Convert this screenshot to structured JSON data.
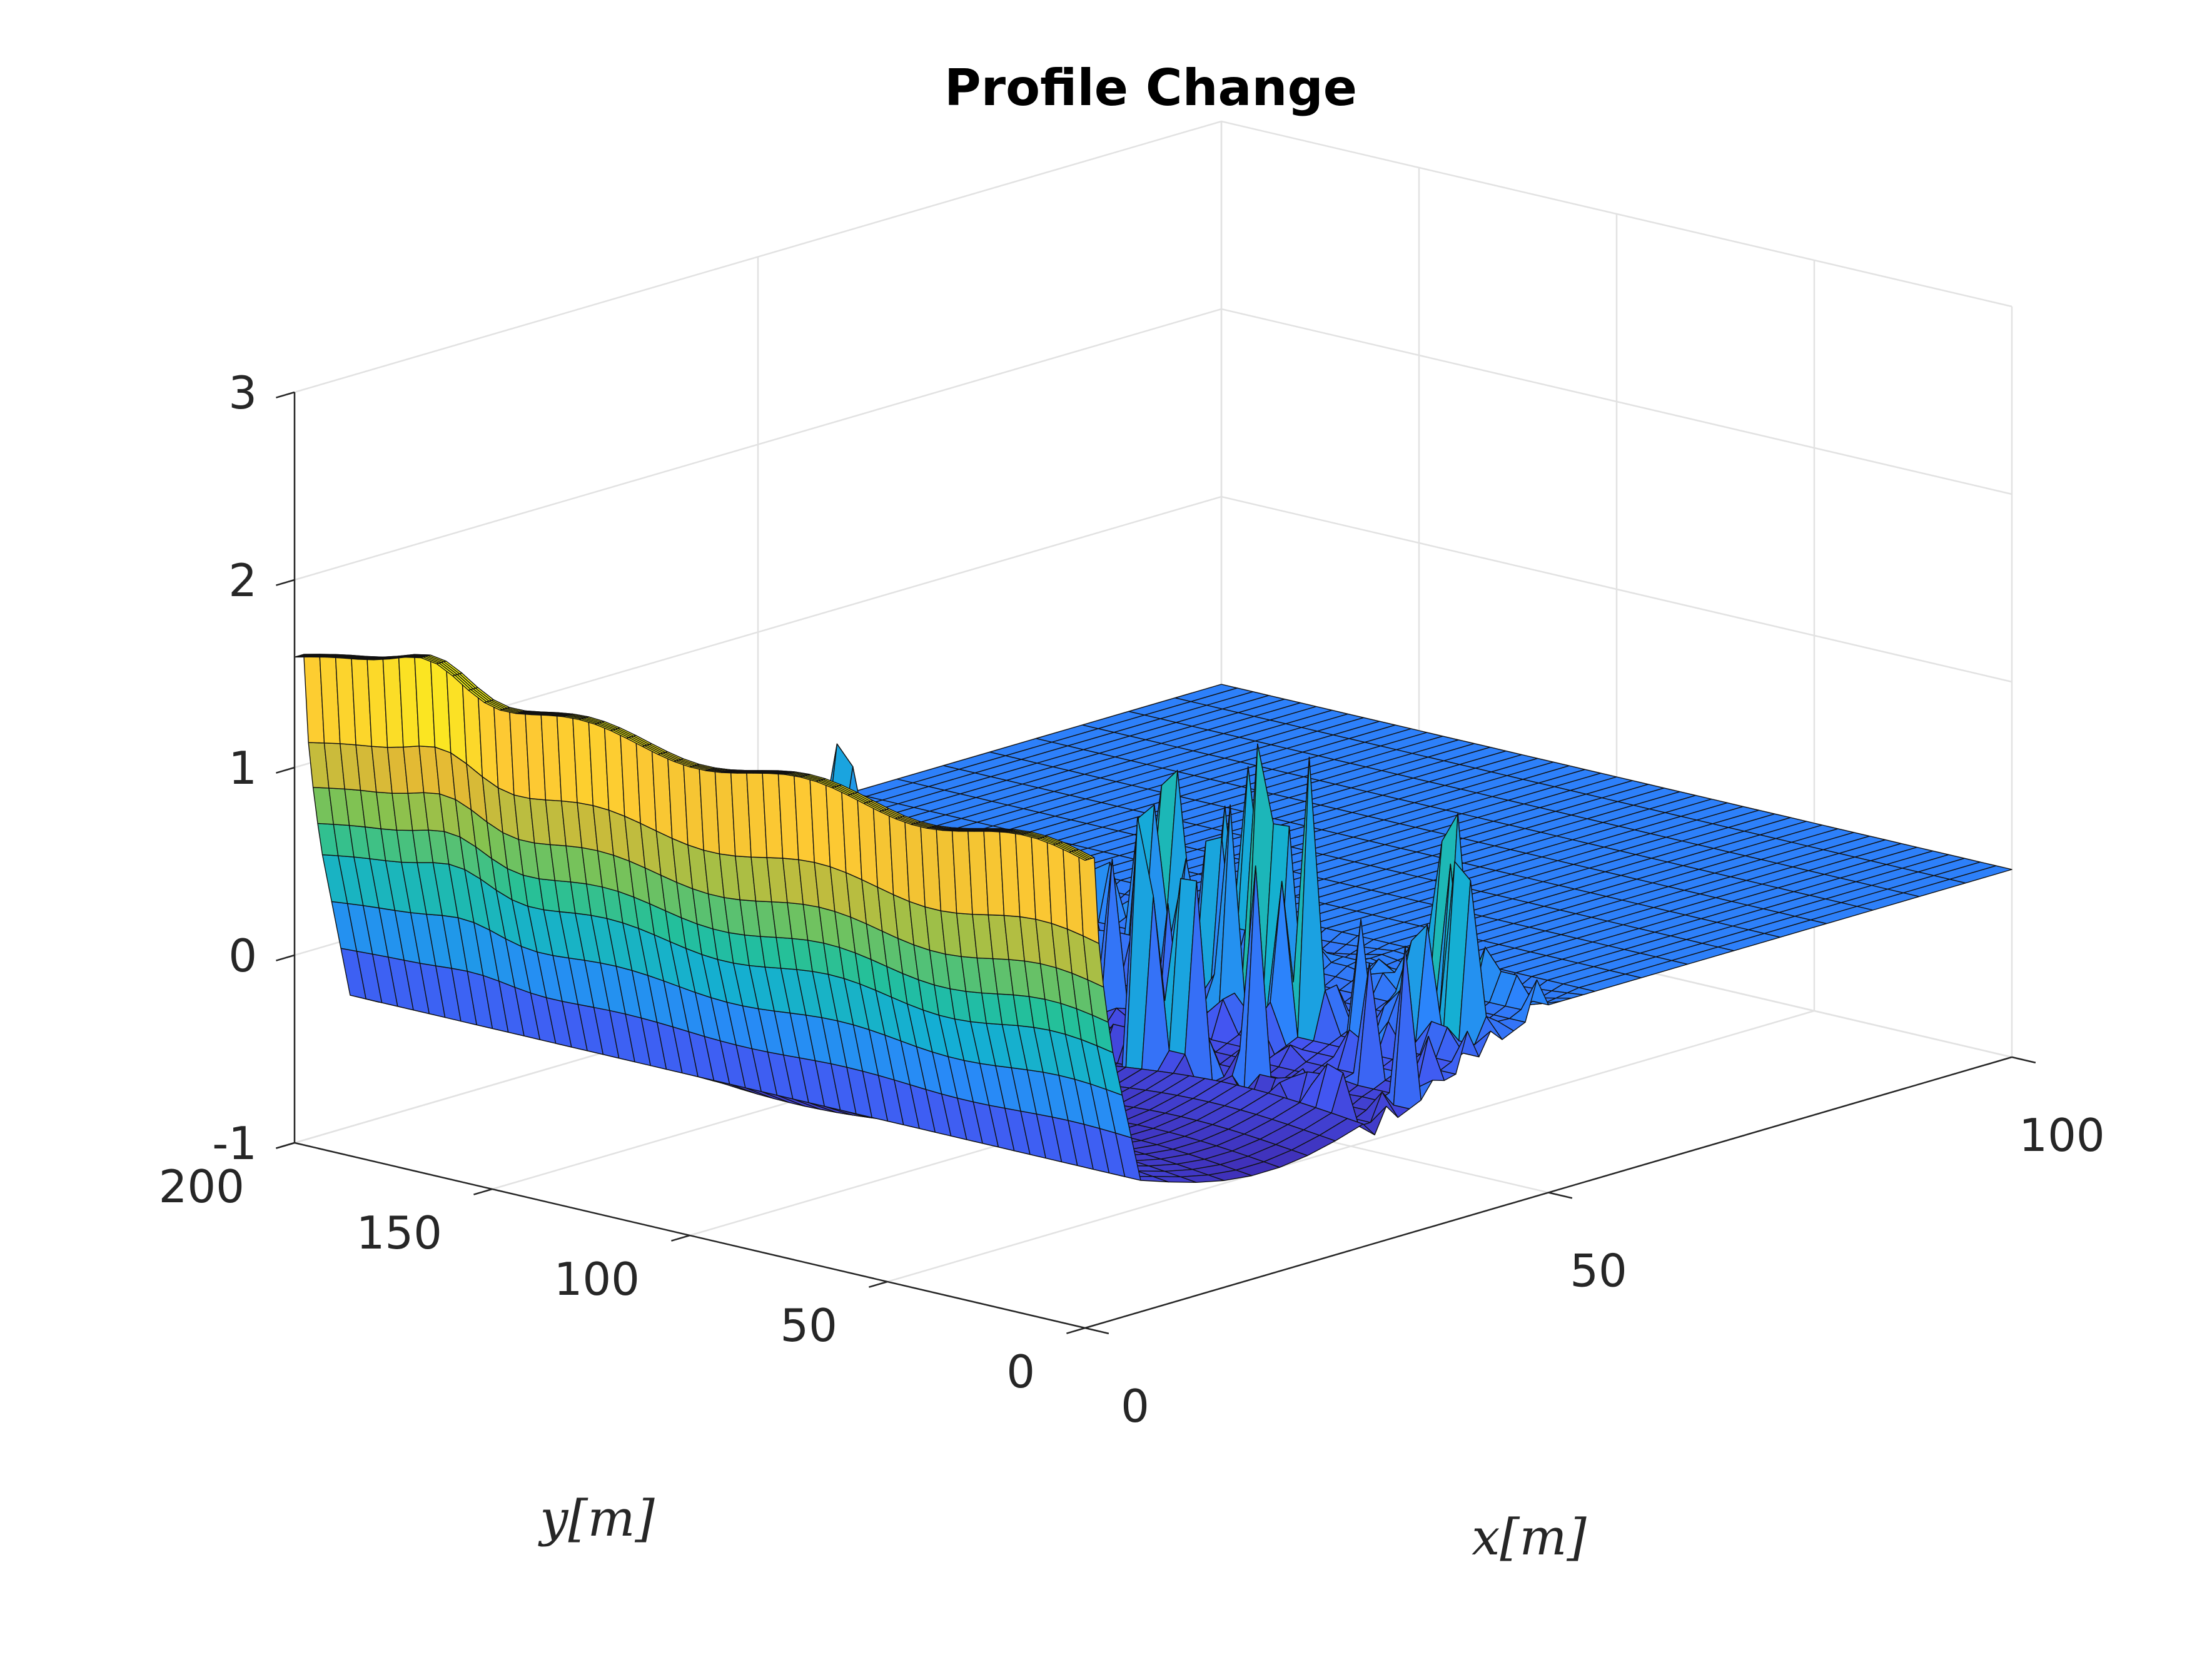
{
  "chart_data": {
    "type": "surface",
    "title": "Profile Change",
    "xlabel": "x[m]",
    "ylabel": "y[m]",
    "zlabel": "",
    "xlim": [
      0,
      100
    ],
    "ylim": [
      0,
      200
    ],
    "zlim": [
      -1,
      3
    ],
    "xticks": [
      0,
      50,
      100
    ],
    "xtick_labels": [
      "0",
      "50",
      "100"
    ],
    "yticks": [
      0,
      50,
      100,
      150,
      200
    ],
    "ytick_labels": [
      "0",
      "50",
      "100",
      "150",
      "200"
    ],
    "zticks": [
      -1,
      0,
      1,
      2,
      3
    ],
    "ztick_labels": [
      "-1",
      "0",
      "1",
      "2",
      "3"
    ],
    "grid": true,
    "colormap": "parula",
    "colormap_stops": [
      "#3e26a8",
      "#4453f0",
      "#2b85fb",
      "#14aed5",
      "#24c09a",
      "#84c250",
      "#e1b934",
      "#fdc933",
      "#f9fb15"
    ],
    "color_limits": [
      -0.5,
      1.6
    ],
    "surface_regions": [
      {
        "feature": "dune crest",
        "x_range": [
          0,
          1
        ],
        "y_range": [
          0,
          200
        ],
        "z_value": 1.6
      },
      {
        "feature": "dune face",
        "x_range": [
          1,
          3
        ],
        "y_range": [
          0,
          200
        ],
        "z_value": 0.5
      },
      {
        "feature": "dune base",
        "x_range": [
          3,
          6
        ],
        "y_range": [
          0,
          200
        ],
        "z_value": -0.3
      },
      {
        "feature": "trough",
        "x_range": [
          6,
          30
        ],
        "y_range": [
          0,
          200
        ],
        "z_value": -0.45
      },
      {
        "feature": "spike field",
        "x_range": [
          30,
          50
        ],
        "y_range": [
          0,
          200
        ],
        "z_max": 1.6
      },
      {
        "feature": "flat plane",
        "x_range": [
          55,
          100
        ],
        "y_range": [
          0,
          200
        ],
        "z_value": 0.0
      }
    ]
  }
}
